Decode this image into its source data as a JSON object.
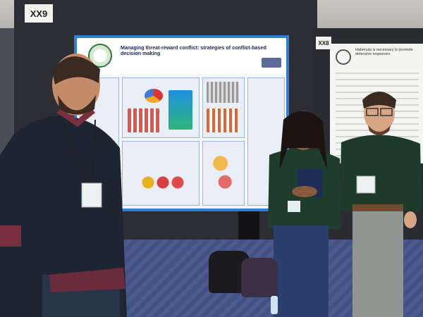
{
  "booth_labels": {
    "left": "XX9",
    "right": "XX8"
  },
  "poster": {
    "title": "Managing threat-reward conflict: strategies of conflict-based decision making"
  },
  "poster_right": {
    "title": "Habenula is necessary to promote defensive responses"
  }
}
